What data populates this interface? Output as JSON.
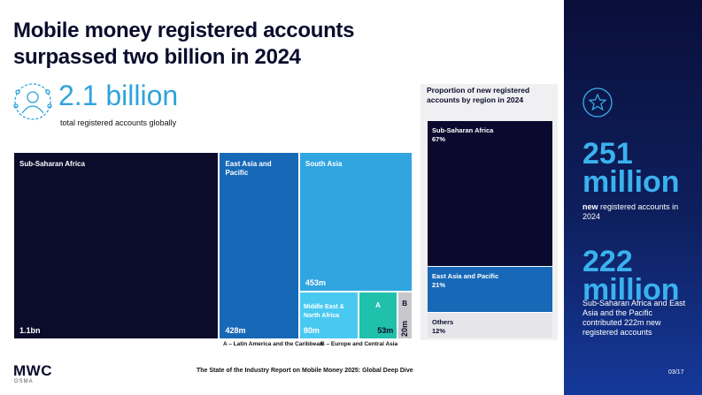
{
  "header": {
    "title": "Mobile money registered accounts surpassed two billion in 2024"
  },
  "headline": {
    "value": "2.1 billion",
    "caption": "total registered accounts globally"
  },
  "treemap": {
    "items": [
      {
        "name": "Sub-Saharan Africa",
        "value": 1100,
        "label": "1.1bn"
      },
      {
        "name": "East Asia and Pacific",
        "value": 428,
        "label": "428m"
      },
      {
        "name": "South Asia",
        "value": 453,
        "label": "453m"
      },
      {
        "name": "Middle East & North Africa",
        "value": 80,
        "label": "80m"
      },
      {
        "name": "A",
        "value": 53,
        "label": "53m"
      },
      {
        "name": "B",
        "value": 20,
        "label": "20m"
      }
    ],
    "footnotes": [
      "A – Latin America and the Caribbean",
      "B – Europe and Central Asia"
    ]
  },
  "proportion": {
    "title": "Proportion of new registered accounts by region in 2024",
    "items": [
      {
        "name": "Sub-Saharan Africa",
        "value": 67,
        "label": "67%"
      },
      {
        "name": "East Asia and Pacific",
        "value": 21,
        "label": "21%"
      },
      {
        "name": "Others",
        "value": 12,
        "label": "12%"
      }
    ]
  },
  "sidebar": {
    "stat1": {
      "value": "251 million",
      "caption_bold": "new",
      "caption": "registered accounts in 2024"
    },
    "stat2": {
      "value": "222 million",
      "caption": "Sub-Saharan Africa and East Asia and the Pacific contributed 222m new registered accounts"
    }
  },
  "footer": {
    "logo": "MWC",
    "logo_sub": "GSMA",
    "report": "The State of the Industry Report on Mobile Money 2025: Global Deep Dive",
    "page": "03/17"
  }
}
